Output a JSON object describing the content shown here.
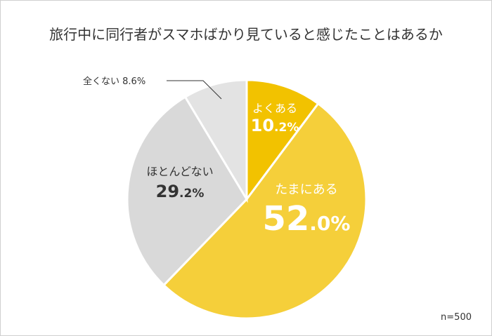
{
  "chart_data": {
    "type": "pie",
    "title": "旅行中に同行者がスマホばかり見ていると感じたことはあるか",
    "note": "n=500",
    "slices": [
      {
        "label": "よくある",
        "value": 10.2,
        "color": "#F2C200"
      },
      {
        "label": "たまにある",
        "value": 52.0,
        "color": "#F5CF3A"
      },
      {
        "label": "ほとんどない",
        "value": 29.2,
        "color": "#D9D9D9"
      },
      {
        "label": "全くない",
        "value": 8.6,
        "color": "#E3E3E3"
      }
    ],
    "start": "top",
    "direction": "clockwise"
  }
}
